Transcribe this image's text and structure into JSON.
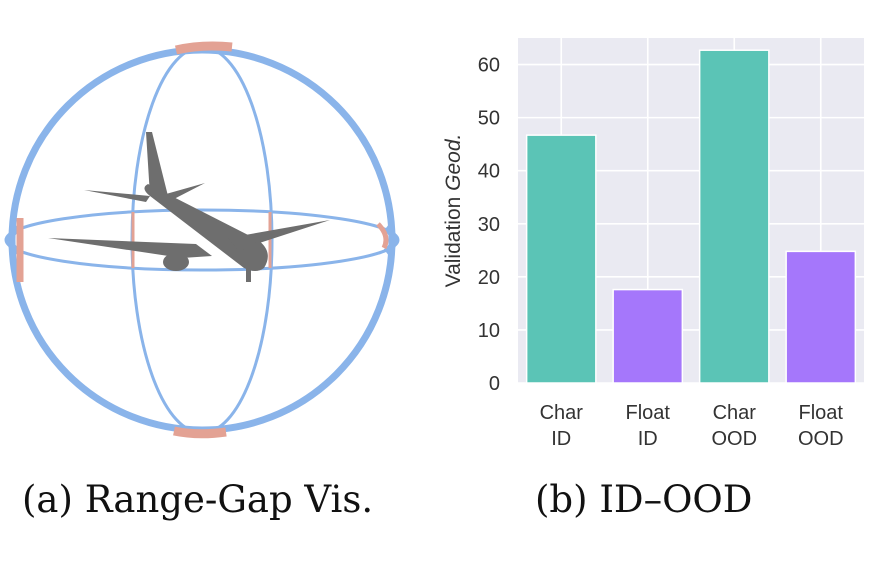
{
  "captions": {
    "a": "(a) Range-Gap Vis.",
    "b": "(b) ID–OOD"
  },
  "colors": {
    "ring": "#8ab4ea",
    "gap": "#e3a294",
    "airplane": "#6e6e6e",
    "plot_bg": "#eaeaf2",
    "grid": "#ffffff",
    "bar_char": "#5bc4b6",
    "bar_float": "#a577fb"
  },
  "chart_data": {
    "type": "bar",
    "categories": [
      [
        "Char",
        "ID"
      ],
      [
        "Float",
        "ID"
      ],
      [
        "Char",
        "OOD"
      ],
      [
        "Float",
        "OOD"
      ]
    ],
    "values": [
      46.7,
      17.6,
      62.7,
      24.8
    ],
    "ylabel_prefix": "Validation ",
    "ylabel_italic": "Geod.",
    "xlabel": "",
    "title": "",
    "ylim": [
      0,
      65
    ],
    "yticks": [
      0,
      10,
      20,
      30,
      40,
      50,
      60
    ],
    "grid": true,
    "bar_colors": [
      "#5bc4b6",
      "#a577fb",
      "#5bc4b6",
      "#a577fb"
    ]
  }
}
